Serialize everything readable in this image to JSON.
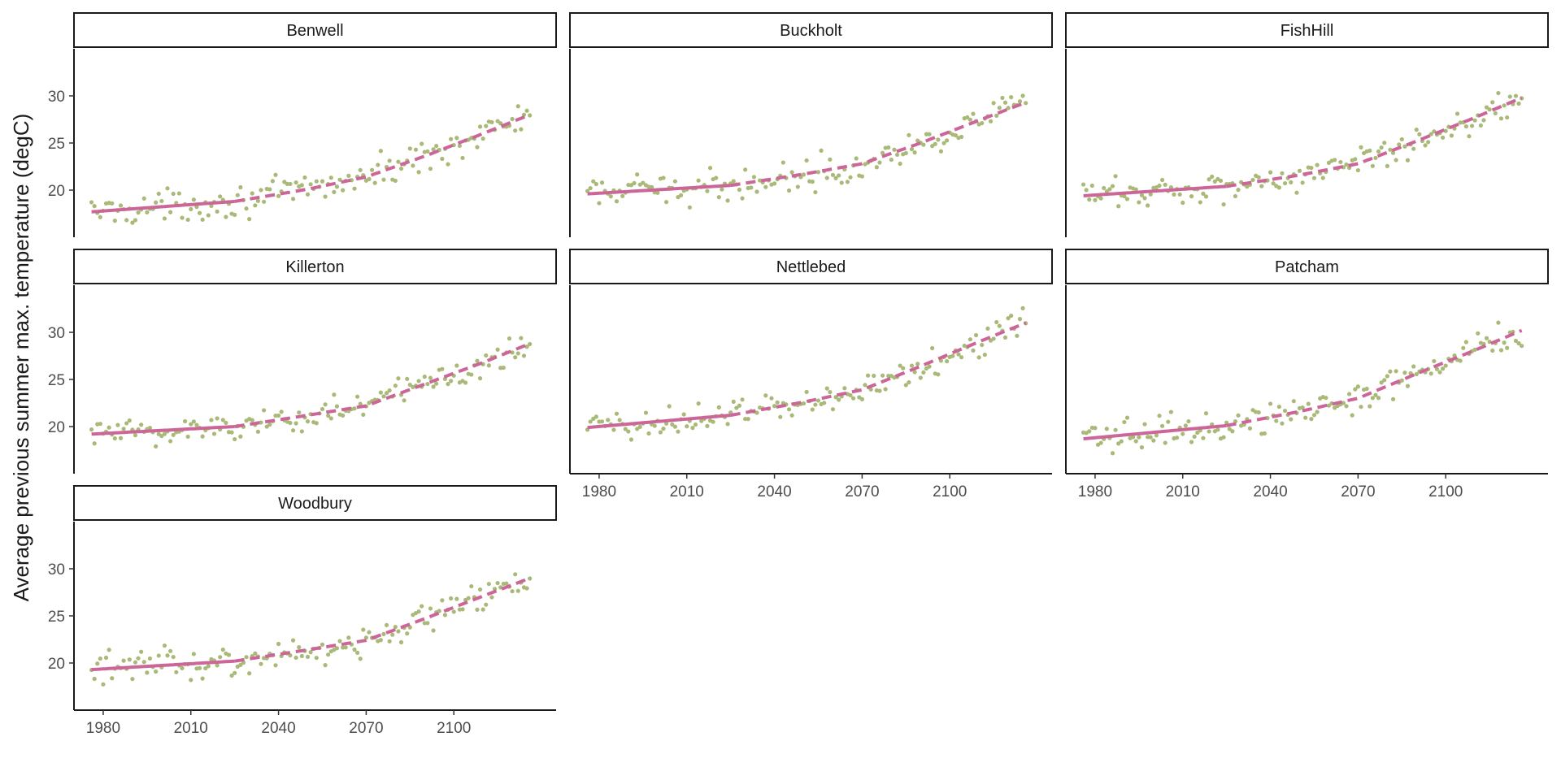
{
  "chart_data": {
    "type": "scatter",
    "ylabel": "Average previous summer max. temperature (degC)",
    "xlim": [
      1970,
      2135
    ],
    "ylim": [
      15,
      35
    ],
    "x_ticks": [
      1980,
      2010,
      2040,
      2070,
      2100
    ],
    "y_ticks": [
      20,
      25,
      30
    ],
    "grid": false,
    "point_color": "#a9b978",
    "line_color": "#cc6699",
    "observed_end_year": 2025,
    "year_range": [
      1976,
      2126
    ],
    "panels": [
      {
        "name": "Benwell",
        "trend": [
          [
            1976,
            17.7
          ],
          [
            2025,
            18.8
          ],
          [
            2050,
            20.1
          ],
          [
            2070,
            21.4
          ],
          [
            2090,
            23.6
          ],
          [
            2110,
            26.0
          ],
          [
            2126,
            28.0
          ]
        ]
      },
      {
        "name": "Buckholt",
        "trend": [
          [
            1976,
            19.6
          ],
          [
            2025,
            20.5
          ],
          [
            2050,
            21.7
          ],
          [
            2070,
            22.8
          ],
          [
            2090,
            25.0
          ],
          [
            2110,
            27.4
          ],
          [
            2126,
            29.3
          ]
        ]
      },
      {
        "name": "FishHill",
        "trend": [
          [
            1976,
            19.4
          ],
          [
            2025,
            20.4
          ],
          [
            2050,
            21.6
          ],
          [
            2070,
            22.8
          ],
          [
            2090,
            25.2
          ],
          [
            2110,
            27.7
          ],
          [
            2126,
            29.8
          ]
        ]
      },
      {
        "name": "Killerton",
        "trend": [
          [
            1976,
            19.2
          ],
          [
            2025,
            20.0
          ],
          [
            2050,
            21.2
          ],
          [
            2070,
            22.2
          ],
          [
            2090,
            24.5
          ],
          [
            2110,
            26.8
          ],
          [
            2126,
            28.8
          ]
        ]
      },
      {
        "name": "Nettlebed",
        "trend": [
          [
            1976,
            19.9
          ],
          [
            2025,
            21.2
          ],
          [
            2050,
            22.6
          ],
          [
            2070,
            23.9
          ],
          [
            2090,
            26.4
          ],
          [
            2110,
            29.0
          ],
          [
            2126,
            31.0
          ]
        ]
      },
      {
        "name": "Patcham",
        "trend": [
          [
            1976,
            18.7
          ],
          [
            2025,
            20.1
          ],
          [
            2050,
            21.6
          ],
          [
            2070,
            23.0
          ],
          [
            2090,
            25.6
          ],
          [
            2110,
            28.1
          ],
          [
            2126,
            30.2
          ]
        ]
      },
      {
        "name": "Woodbury",
        "trend": [
          [
            1976,
            19.3
          ],
          [
            2025,
            20.2
          ],
          [
            2050,
            21.4
          ],
          [
            2070,
            22.4
          ],
          [
            2090,
            24.7
          ],
          [
            2110,
            27.1
          ],
          [
            2126,
            29.0
          ]
        ]
      }
    ]
  }
}
